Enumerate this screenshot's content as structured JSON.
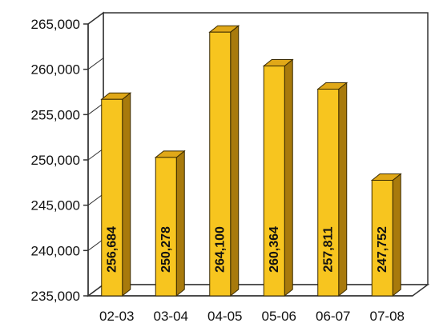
{
  "chart_data": {
    "type": "bar",
    "categories": [
      "02-03",
      "03-04",
      "04-05",
      "05-06",
      "06-07",
      "07-08"
    ],
    "values": [
      256684,
      250278,
      264100,
      260364,
      257811,
      247752
    ],
    "data_labels": [
      "256,684",
      "250,278",
      "264,100",
      "260,364",
      "257,811",
      "247,752"
    ],
    "y_ticks": [
      "235,000",
      "240,000",
      "245,000",
      "250,000",
      "255,000",
      "260,000",
      "265,000"
    ],
    "y_tick_values": [
      235000,
      240000,
      245000,
      250000,
      255000,
      260000,
      265000
    ],
    "ylim": [
      235000,
      265000
    ],
    "title": "",
    "xlabel": "",
    "ylabel": "",
    "grid": false,
    "legend": "none",
    "style": "3d-bar",
    "colors": {
      "bar_front": "#f7c51f",
      "bar_side": "#a87a0c",
      "bar_top": "#e0a818",
      "bar_outline": "#3a2a00",
      "axis": "#333333",
      "text": "#111111"
    }
  }
}
